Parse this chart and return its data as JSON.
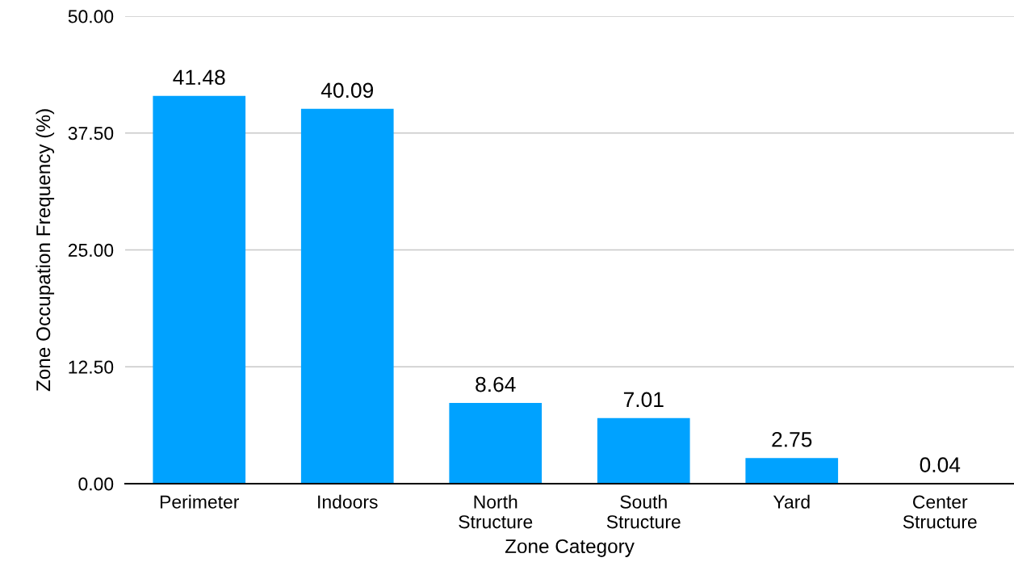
{
  "chart_data": {
    "type": "bar",
    "xlabel": "Zone Category",
    "ylabel": "Zone Occupation Frequency (%)",
    "categories": [
      "Perimeter",
      "Indoors",
      "North\nStructure",
      "South\nStructure",
      "Yard",
      "Center\nStructure"
    ],
    "values": [
      41.48,
      40.09,
      8.64,
      7.01,
      2.75,
      0.04
    ],
    "color": "#00a2ff",
    "ylim": [
      0,
      50
    ],
    "yticks": [
      {
        "value": 0,
        "label": "0.00"
      },
      {
        "value": 12.5,
        "label": "12.50"
      },
      {
        "value": 25,
        "label": "25.00"
      },
      {
        "value": 37.5,
        "label": "37.50"
      },
      {
        "value": 50,
        "label": "50.00"
      }
    ],
    "grid": "y",
    "data_labels": true
  }
}
